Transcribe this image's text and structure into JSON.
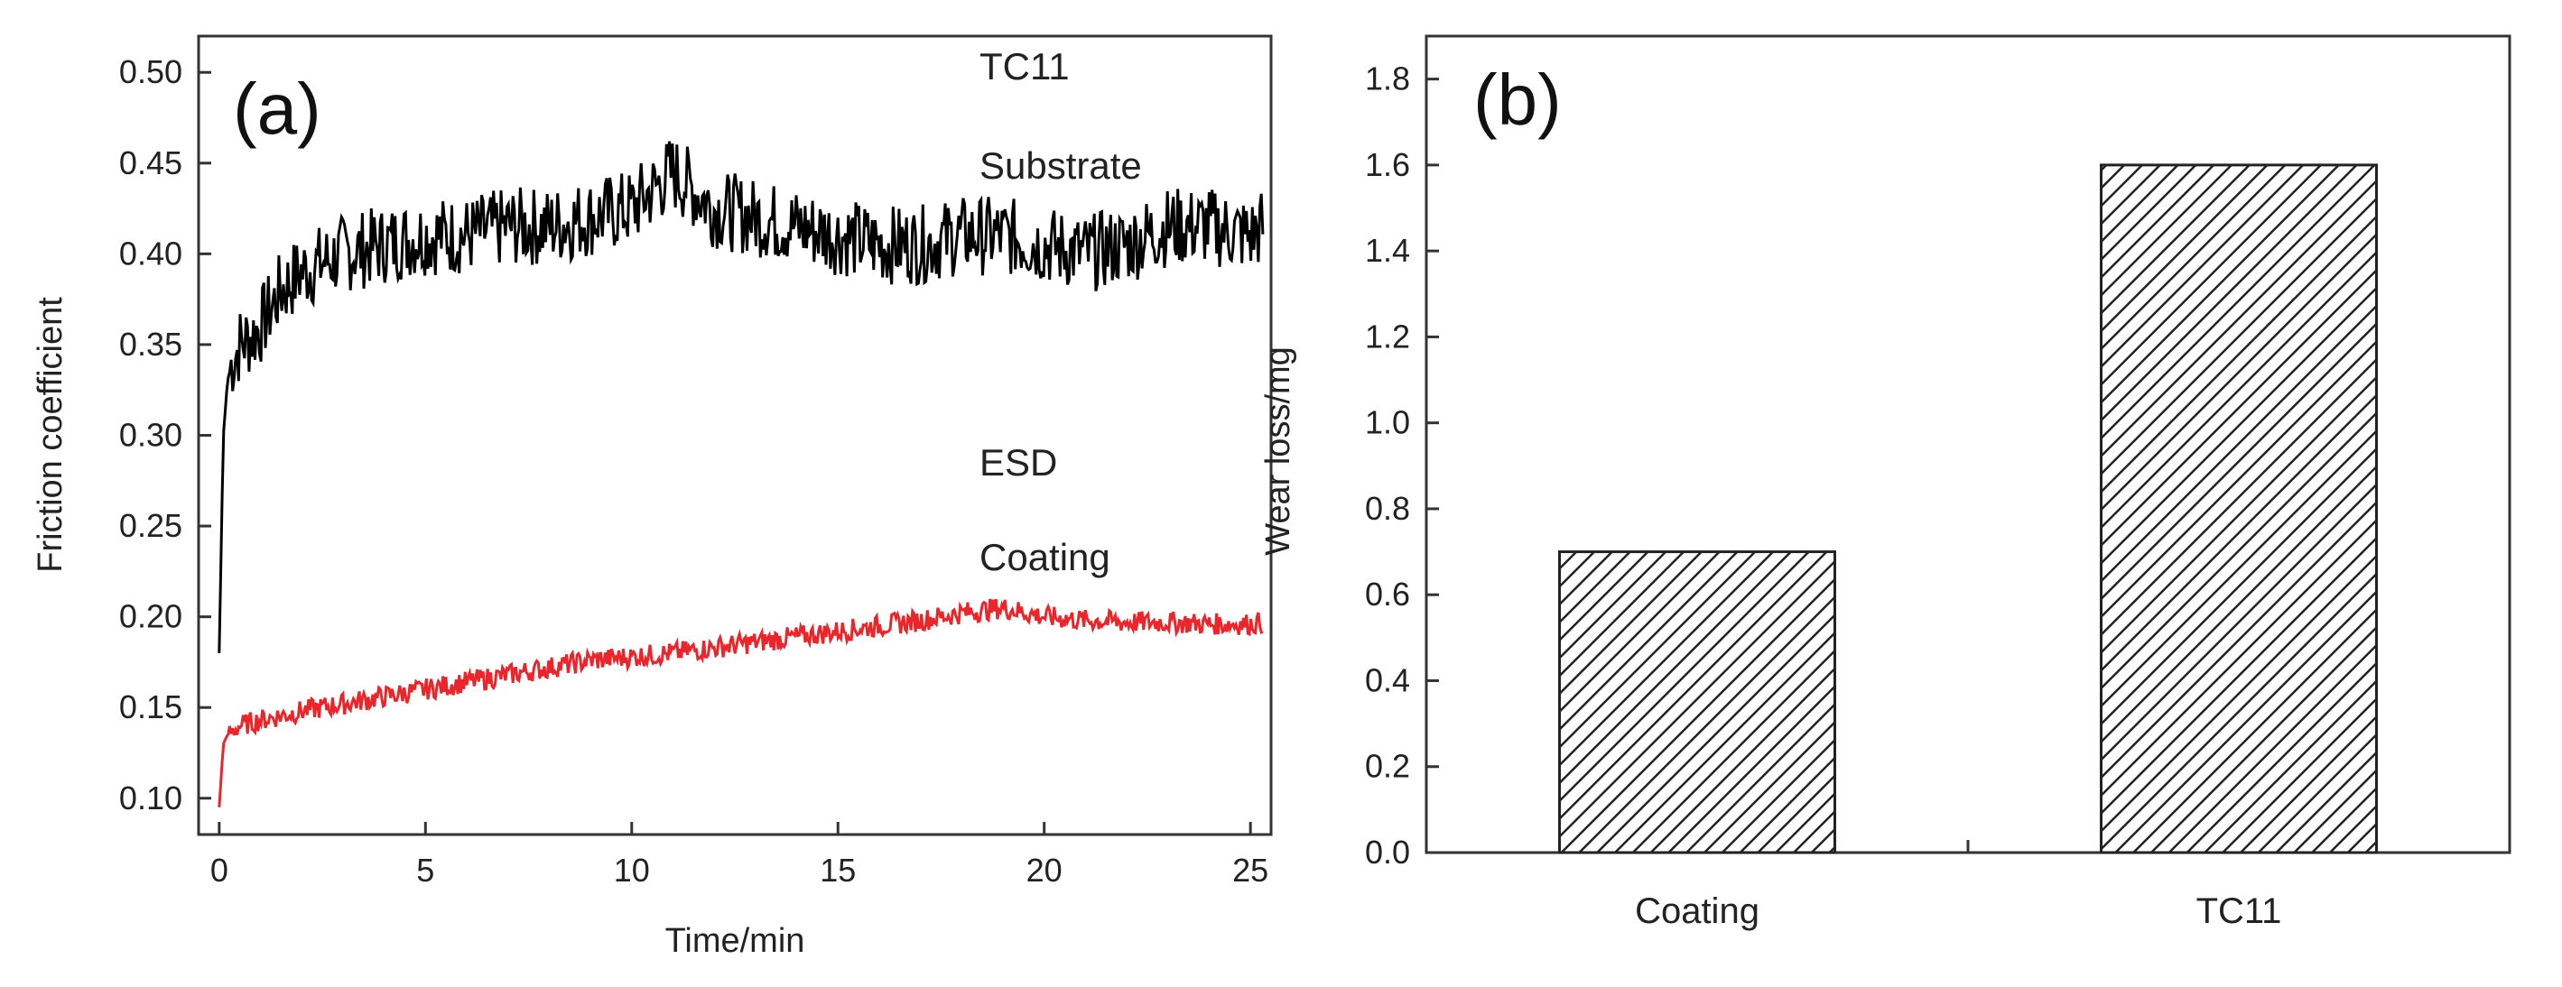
{
  "chart_data": [
    {
      "panel": "(a)",
      "type": "line",
      "xlabel": "Time/min",
      "ylabel": "Friction coefficient",
      "xlim": [
        -0.5,
        25.5
      ],
      "ylim": [
        0.08,
        0.52
      ],
      "xticks": [
        0,
        5,
        10,
        15,
        20,
        25
      ],
      "yticks": [
        0.1,
        0.15,
        0.2,
        0.25,
        0.3,
        0.35,
        0.4,
        0.45,
        0.5
      ],
      "series": [
        {
          "name": "TC11 Substrate",
          "label_lines": [
            "TC11",
            "Substrate"
          ],
          "color": "#000000",
          "x": [
            0,
            0.1,
            0.2,
            0.3,
            0.5,
            0.8,
            1.0,
            1.5,
            2.0,
            3.0,
            4.0,
            5.0,
            6.0,
            7.0,
            8.0,
            9.0,
            10.0,
            11.0,
            12.0,
            13.0,
            14.0,
            15.0,
            16.0,
            17.0,
            18.0,
            19.0,
            20.0,
            21.0,
            22.0,
            23.0,
            24.0,
            25.0,
            25.3
          ],
          "y": [
            0.18,
            0.3,
            0.33,
            0.34,
            0.35,
            0.355,
            0.36,
            0.38,
            0.39,
            0.4,
            0.405,
            0.41,
            0.41,
            0.415,
            0.415,
            0.42,
            0.425,
            0.445,
            0.425,
            0.42,
            0.415,
            0.41,
            0.405,
            0.405,
            0.41,
            0.41,
            0.405,
            0.4,
            0.405,
            0.415,
            0.415,
            0.41,
            0.415
          ]
        },
        {
          "name": "ESD Coating",
          "label_lines": [
            "ESD",
            "Coating"
          ],
          "color": "#e8262b",
          "x": [
            0,
            0.1,
            0.2,
            0.5,
            1.0,
            2.0,
            3.0,
            4.0,
            5.0,
            6.0,
            7.0,
            8.0,
            9.0,
            10.0,
            11.0,
            12.0,
            13.0,
            14.0,
            15.0,
            16.0,
            17.0,
            18.0,
            19.0,
            20.0,
            21.0,
            22.0,
            23.0,
            24.0,
            25.0,
            25.3
          ],
          "y": [
            0.095,
            0.13,
            0.135,
            0.14,
            0.143,
            0.148,
            0.152,
            0.156,
            0.16,
            0.164,
            0.168,
            0.172,
            0.176,
            0.178,
            0.18,
            0.183,
            0.186,
            0.189,
            0.192,
            0.195,
            0.198,
            0.202,
            0.205,
            0.2,
            0.198,
            0.197,
            0.197,
            0.196,
            0.196,
            0.197
          ]
        }
      ]
    },
    {
      "panel": "(b)",
      "type": "bar",
      "xlabel": "",
      "ylabel": "Wear loss/mg",
      "ylim": [
        0,
        1.9
      ],
      "yticks": [
        0.0,
        0.2,
        0.4,
        0.6,
        0.8,
        1.0,
        1.2,
        1.4,
        1.6,
        1.8
      ],
      "categories": [
        "Coating",
        "TC11"
      ],
      "values": [
        0.7,
        1.6
      ],
      "fill": "hatched"
    }
  ]
}
